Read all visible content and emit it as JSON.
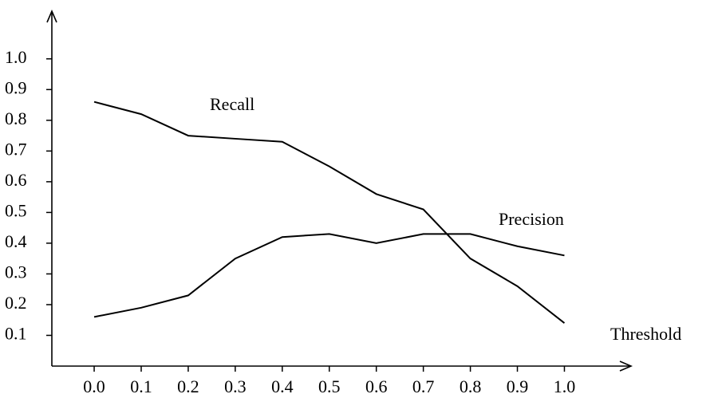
{
  "chart_data": {
    "type": "line",
    "x_label": "Threshold",
    "x": [
      0,
      0.1,
      0.2,
      0.3,
      0.4,
      0.5,
      0.6,
      0.7,
      0.8,
      0.9,
      1
    ],
    "series": [
      {
        "name": "Recall",
        "color": "#000000",
        "values": [
          0.86,
          0.82,
          0.75,
          0.74,
          0.73,
          0.65,
          0.56,
          0.51,
          0.35,
          0.26,
          0.14
        ]
      },
      {
        "name": "Precision",
        "color": "#000000",
        "values": [
          0.16,
          0.19,
          0.23,
          0.35,
          0.42,
          0.43,
          0.4,
          0.43,
          0.43,
          0.39,
          0.36
        ]
      }
    ],
    "xlim": [
      -0.09,
      1.14
    ],
    "ylim": [
      0,
      1.15
    ],
    "xticks": [
      {
        "value": 0,
        "label": "0.0"
      },
      0.1,
      0.2,
      0.3,
      0.4,
      0.5,
      0.6,
      0.7,
      0.8,
      0.9,
      {
        "value": 1,
        "label": "1.0"
      }
    ],
    "yticks": [
      0.1,
      0.2,
      0.3,
      0.4,
      0.5,
      0.6,
      0.7,
      0.8,
      0.9,
      {
        "value": 1,
        "label": "1.0"
      }
    ],
    "grid": false
  }
}
